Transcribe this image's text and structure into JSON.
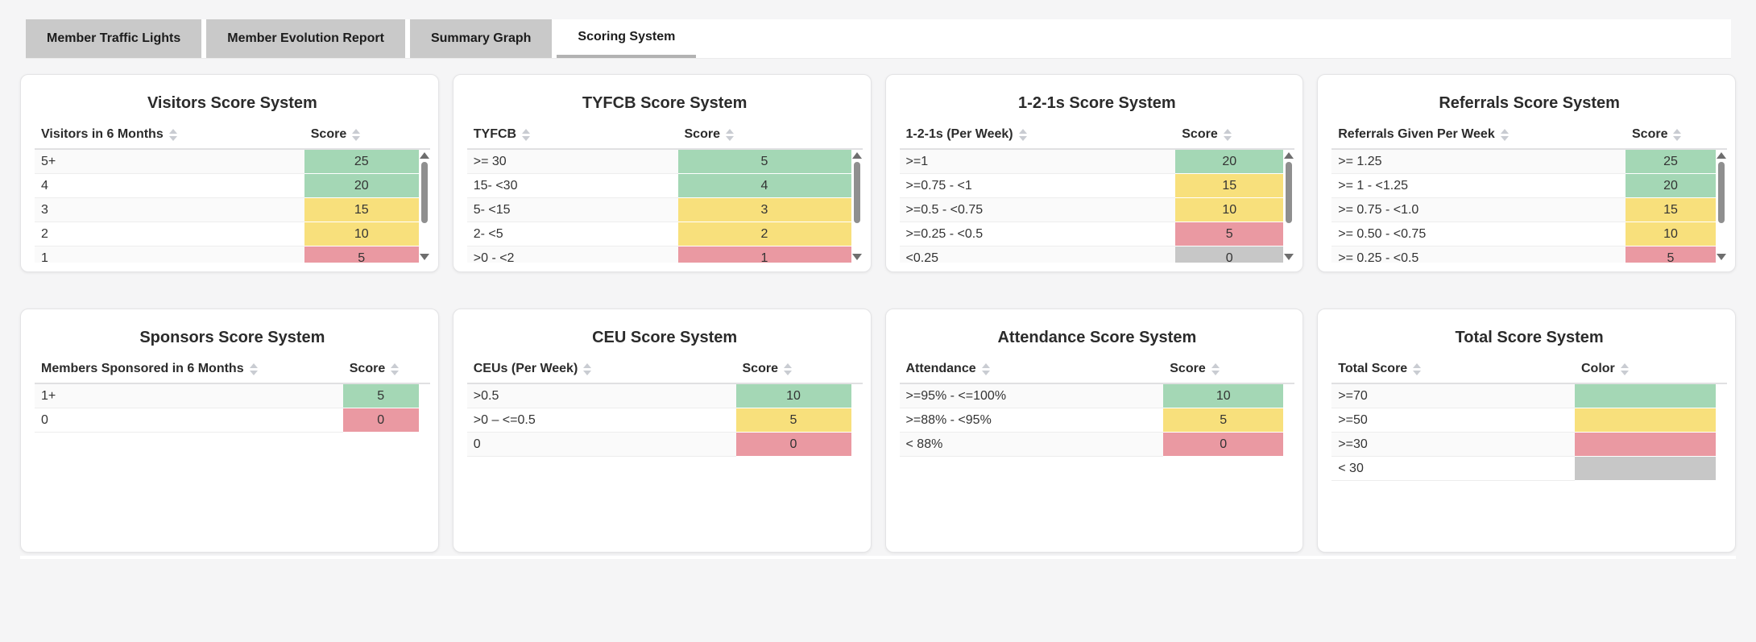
{
  "tabs": {
    "items": [
      {
        "label": "Member Traffic Lights",
        "active": false
      },
      {
        "label": "Member Evolution Report",
        "active": false
      },
      {
        "label": "Summary Graph",
        "active": false
      },
      {
        "label": "Scoring System",
        "active": true
      }
    ]
  },
  "palette": {
    "green": "#a4d7b5",
    "yellow": "#f8e07c",
    "red": "#ea99a2",
    "gray": "#c7c7c7"
  },
  "cards": [
    {
      "title": "Visitors Score System",
      "col1": "Visitors in 6 Months",
      "col2": "Score",
      "rows": [
        {
          "label": "5+",
          "value": "25",
          "color": "green"
        },
        {
          "label": "4",
          "value": "20",
          "color": "green"
        },
        {
          "label": "3",
          "value": "15",
          "color": "yellow"
        },
        {
          "label": "2",
          "value": "10",
          "color": "yellow"
        },
        {
          "label": "1",
          "value": "5",
          "color": "red"
        }
      ]
    },
    {
      "title": "TYFCB Score System",
      "col1": "TYFCB",
      "col2": "Score",
      "rows": [
        {
          "label": ">= 30",
          "value": "5",
          "color": "green"
        },
        {
          "label": "15- <30",
          "value": "4",
          "color": "green"
        },
        {
          "label": "5- <15",
          "value": "3",
          "color": "yellow"
        },
        {
          "label": "2- <5",
          "value": "2",
          "color": "yellow"
        },
        {
          "label": ">0 - <2",
          "value": "1",
          "color": "red"
        }
      ]
    },
    {
      "title": "1-2-1s Score System",
      "col1": "1-2-1s (Per Week)",
      "col2": "Score",
      "rows": [
        {
          "label": ">=1",
          "value": "20",
          "color": "green"
        },
        {
          "label": ">=0.75 - <1",
          "value": "15",
          "color": "yellow"
        },
        {
          "label": ">=0.5 - <0.75",
          "value": "10",
          "color": "yellow"
        },
        {
          "label": ">=0.25 - <0.5",
          "value": "5",
          "color": "red"
        },
        {
          "label": "<0.25",
          "value": "0",
          "color": "gray"
        }
      ]
    },
    {
      "title": "Referrals Score System",
      "col1": "Referrals Given Per Week",
      "col2": "Score",
      "rows": [
        {
          "label": ">= 1.25",
          "value": "25",
          "color": "green"
        },
        {
          "label": ">= 1 - <1.25",
          "value": "20",
          "color": "green"
        },
        {
          "label": ">= 0.75 - <1.0",
          "value": "15",
          "color": "yellow"
        },
        {
          "label": ">= 0.50 - <0.75",
          "value": "10",
          "color": "yellow"
        },
        {
          "label": ">= 0.25 - <0.5",
          "value": "5",
          "color": "red"
        }
      ]
    },
    {
      "title": "Sponsors Score System",
      "col1": "Members Sponsored in 6 Months",
      "col2": "Score",
      "rows": [
        {
          "label": "1+",
          "value": "5",
          "color": "green"
        },
        {
          "label": "0",
          "value": "0",
          "color": "red"
        }
      ]
    },
    {
      "title": "CEU Score System",
      "col1": "CEUs (Per Week)",
      "col2": "Score",
      "rows": [
        {
          "label": ">0.5",
          "value": "10",
          "color": "green"
        },
        {
          "label": ">0 – <=0.5",
          "value": "5",
          "color": "yellow"
        },
        {
          "label": "0",
          "value": "0",
          "color": "red"
        }
      ]
    },
    {
      "title": "Attendance Score System",
      "col1": "Attendance",
      "col2": "Score",
      "rows": [
        {
          "label": ">=95% - <=100%",
          "value": "10",
          "color": "green"
        },
        {
          "label": ">=88% - <95%",
          "value": "5",
          "color": "yellow"
        },
        {
          "label": "< 88%",
          "value": "0",
          "color": "red"
        }
      ]
    },
    {
      "title": "Total Score System",
      "col1": "Total Score",
      "col2": "Color",
      "rows": [
        {
          "label": ">=70",
          "value": "",
          "color": "green"
        },
        {
          "label": ">=50",
          "value": "",
          "color": "yellow"
        },
        {
          "label": ">=30",
          "value": "",
          "color": "red"
        },
        {
          "label": "< 30",
          "value": "",
          "color": "gray"
        }
      ]
    }
  ]
}
